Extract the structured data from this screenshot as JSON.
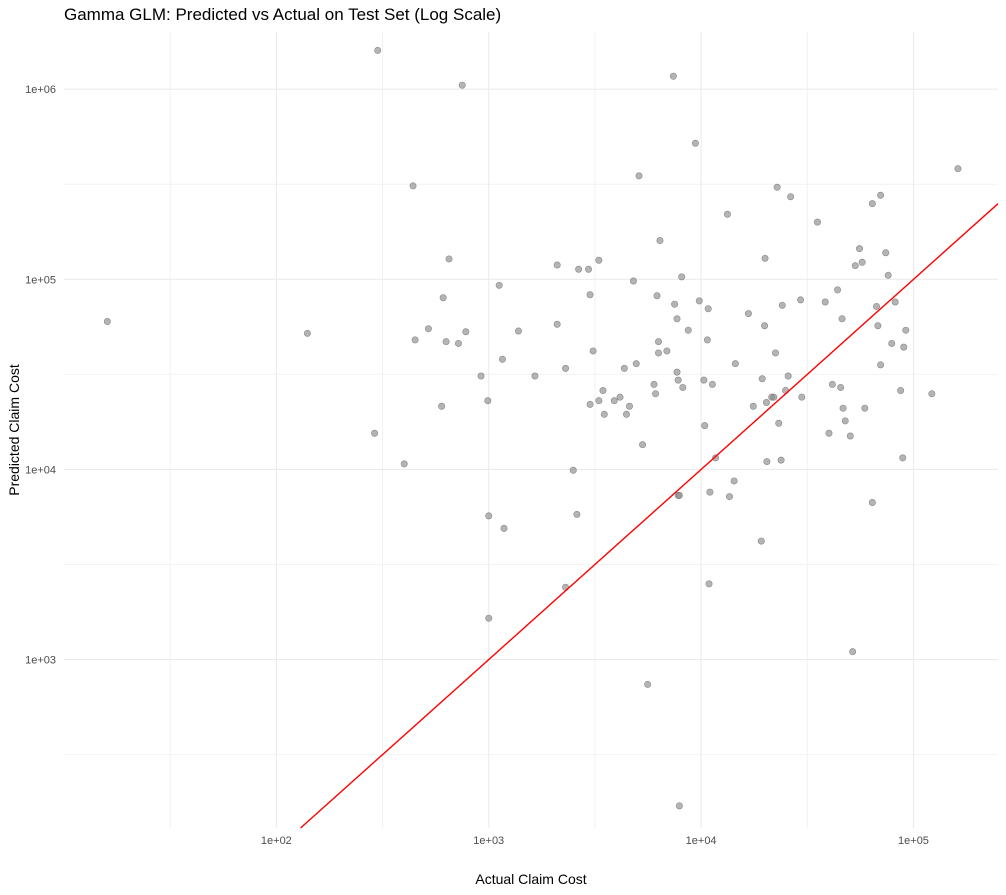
{
  "chart_data": {
    "type": "scatter",
    "title": "Gamma GLM: Predicted vs Actual on Test Set (Log Scale)",
    "xlabel": "Actual Claim Cost",
    "ylabel": "Predicted Claim Cost",
    "x_scale": "log10",
    "y_scale": "log10",
    "xlim": [
      10,
      250000
    ],
    "ylim": [
      130,
      2000000
    ],
    "x_ticks": [
      {
        "value": 100,
        "label": "1e+02"
      },
      {
        "value": 1000,
        "label": "1e+03"
      },
      {
        "value": 10000,
        "label": "1e+04"
      },
      {
        "value": 100000,
        "label": "1e+05"
      }
    ],
    "y_ticks": [
      {
        "value": 1000,
        "label": "1e+03"
      },
      {
        "value": 10000,
        "label": "1e+04"
      },
      {
        "value": 100000,
        "label": "1e+05"
      },
      {
        "value": 1000000,
        "label": "1e+06"
      }
    ],
    "grid": true,
    "point_color": "#8c8c8c",
    "line_color": "#ff0000",
    "reference_line": {
      "type": "y=x"
    },
    "points": [
      [
        16,
        60000
      ],
      [
        140,
        52000
      ],
      [
        290,
        15500
      ],
      [
        300,
        1600000
      ],
      [
        400,
        10700
      ],
      [
        440,
        310000
      ],
      [
        450,
        48000
      ],
      [
        520,
        55000
      ],
      [
        600,
        21500
      ],
      [
        610,
        80000
      ],
      [
        630,
        47000
      ],
      [
        650,
        128000
      ],
      [
        720,
        46000
      ],
      [
        750,
        1050000
      ],
      [
        780,
        53000
      ],
      [
        920,
        31000
      ],
      [
        990,
        23000
      ],
      [
        1000,
        1650
      ],
      [
        1000,
        5700
      ],
      [
        1120,
        93000
      ],
      [
        1160,
        38000
      ],
      [
        1180,
        4900
      ],
      [
        1380,
        53500
      ],
      [
        1650,
        31000
      ],
      [
        2100,
        58000
      ],
      [
        2100,
        119000
      ],
      [
        2300,
        2400
      ],
      [
        2300,
        34000
      ],
      [
        2500,
        9900
      ],
      [
        2600,
        5800
      ],
      [
        2650,
        113000
      ],
      [
        2950,
        113000
      ],
      [
        3000,
        22000
      ],
      [
        3000,
        83000
      ],
      [
        3100,
        42000
      ],
      [
        3300,
        126000
      ],
      [
        3300,
        23000
      ],
      [
        3450,
        26000
      ],
      [
        3500,
        19500
      ],
      [
        3900,
        23000
      ],
      [
        4150,
        24000
      ],
      [
        4350,
        34000
      ],
      [
        4450,
        19500
      ],
      [
        4600,
        21500
      ],
      [
        4800,
        98000
      ],
      [
        4950,
        36000
      ],
      [
        5100,
        350000
      ],
      [
        5300,
        13500
      ],
      [
        5600,
        740
      ],
      [
        6000,
        28000
      ],
      [
        6100,
        25000
      ],
      [
        6200,
        82000
      ],
      [
        6300,
        41000
      ],
      [
        6300,
        47000
      ],
      [
        6400,
        160000
      ],
      [
        6900,
        42000
      ],
      [
        7400,
        1170000
      ],
      [
        7500,
        74000
      ],
      [
        7700,
        62000
      ],
      [
        7700,
        32500
      ],
      [
        7800,
        29500
      ],
      [
        7800,
        7300
      ],
      [
        7900,
        7300
      ],
      [
        7900,
        170
      ],
      [
        8100,
        103000
      ],
      [
        8200,
        27000
      ],
      [
        8700,
        54000
      ],
      [
        9400,
        520000
      ],
      [
        9800,
        77000
      ],
      [
        10300,
        29500
      ],
      [
        10400,
        17000
      ],
      [
        10700,
        48000
      ],
      [
        10800,
        70000
      ],
      [
        10900,
        2500
      ],
      [
        11000,
        7600
      ],
      [
        11300,
        28000
      ],
      [
        11700,
        11500
      ],
      [
        13300,
        220000
      ],
      [
        13600,
        7200
      ],
      [
        14300,
        8700
      ],
      [
        14500,
        36000
      ],
      [
        16700,
        66000
      ],
      [
        17600,
        21500
      ],
      [
        19200,
        4200
      ],
      [
        19400,
        30000
      ],
      [
        19900,
        57000
      ],
      [
        20000,
        129000
      ],
      [
        20300,
        22500
      ],
      [
        20400,
        11000
      ],
      [
        21500,
        24000
      ],
      [
        22000,
        24000
      ],
      [
        22400,
        41000
      ],
      [
        22800,
        305000
      ],
      [
        23200,
        17500
      ],
      [
        23800,
        11200
      ],
      [
        24100,
        73000
      ],
      [
        25000,
        26000
      ],
      [
        25700,
        31000
      ],
      [
        26400,
        272000
      ],
      [
        29400,
        78000
      ],
      [
        29800,
        24000
      ],
      [
        35300,
        200000
      ],
      [
        38400,
        76000
      ],
      [
        40000,
        15500
      ],
      [
        41500,
        28000
      ],
      [
        43900,
        88000
      ],
      [
        45400,
        27000
      ],
      [
        46100,
        62000
      ],
      [
        46600,
        21000
      ],
      [
        47700,
        18000
      ],
      [
        50400,
        15000
      ],
      [
        51700,
        1100
      ],
      [
        53200,
        118000
      ],
      [
        55700,
        145000
      ],
      [
        57300,
        123000
      ],
      [
        59000,
        21000
      ],
      [
        64000,
        250000
      ],
      [
        64000,
        6700
      ],
      [
        67000,
        72000
      ],
      [
        68000,
        57000
      ],
      [
        70000,
        277000
      ],
      [
        70000,
        35500
      ],
      [
        74000,
        138000
      ],
      [
        76000,
        105000
      ],
      [
        79000,
        46000
      ],
      [
        82000,
        76000
      ],
      [
        87000,
        26000
      ],
      [
        89000,
        11500
      ],
      [
        90000,
        44000
      ],
      [
        92000,
        54000
      ],
      [
        122000,
        25000
      ],
      [
        162000,
        382000
      ]
    ]
  }
}
